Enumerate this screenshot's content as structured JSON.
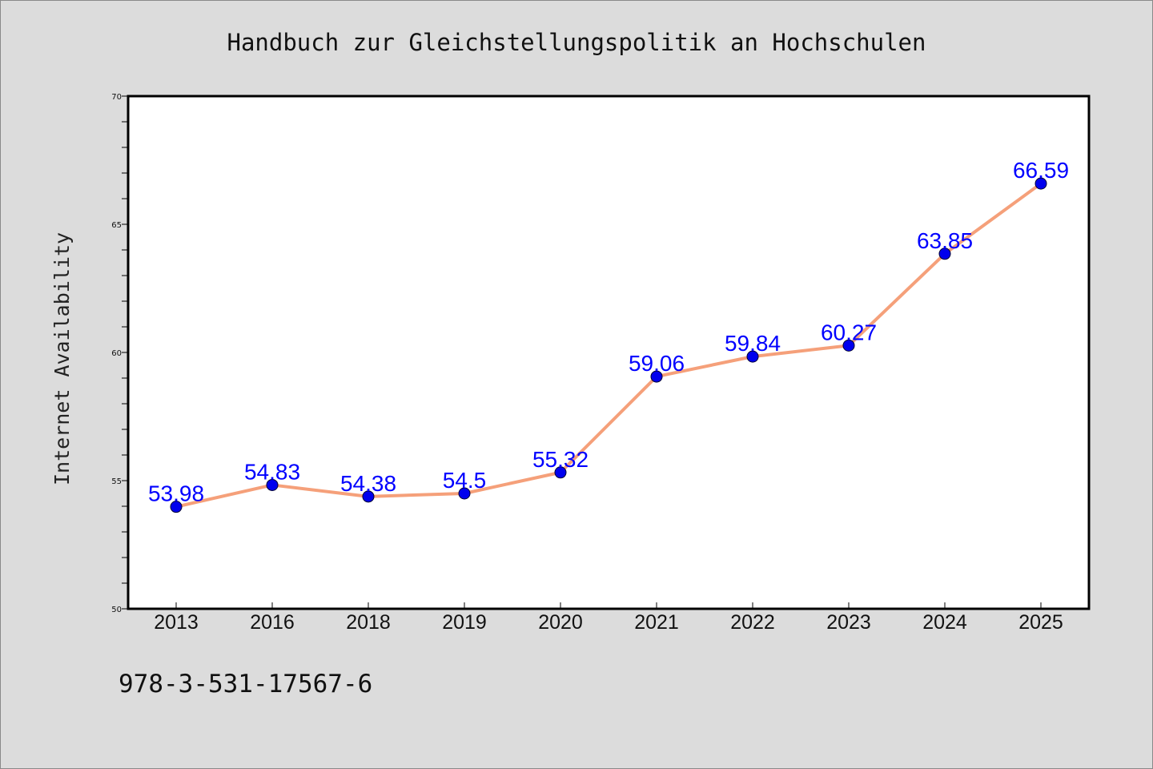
{
  "chart_data": {
    "type": "line",
    "title": "Handbuch zur Gleichstellungspolitik an Hochschulen",
    "xlabel": "",
    "ylabel": "Internet Availability",
    "categories": [
      "2013",
      "2016",
      "2018",
      "2019",
      "2020",
      "2021",
      "2022",
      "2023",
      "2024",
      "2025"
    ],
    "series": [
      {
        "values": [
          53.98,
          54.83,
          54.38,
          54.5,
          55.32,
          59.06,
          59.84,
          60.27,
          63.85,
          66.59
        ],
        "labels": [
          "53.98",
          "54.83",
          "54.38",
          "54.5",
          "55.32",
          "59.06",
          "59.84",
          "60.27",
          "63.85",
          "66.59"
        ]
      }
    ],
    "ylim": [
      50,
      70
    ],
    "yticks": [
      50,
      55,
      60,
      65,
      70
    ],
    "grid": false,
    "legend": "none",
    "colors": {
      "line": "#f5a07a",
      "marker": "#0000ee",
      "label": "#0000ff",
      "background": "#dcdcdc",
      "plot_background": "#ffffff"
    }
  },
  "footer": {
    "isbn": "978-3-531-17567-6"
  }
}
